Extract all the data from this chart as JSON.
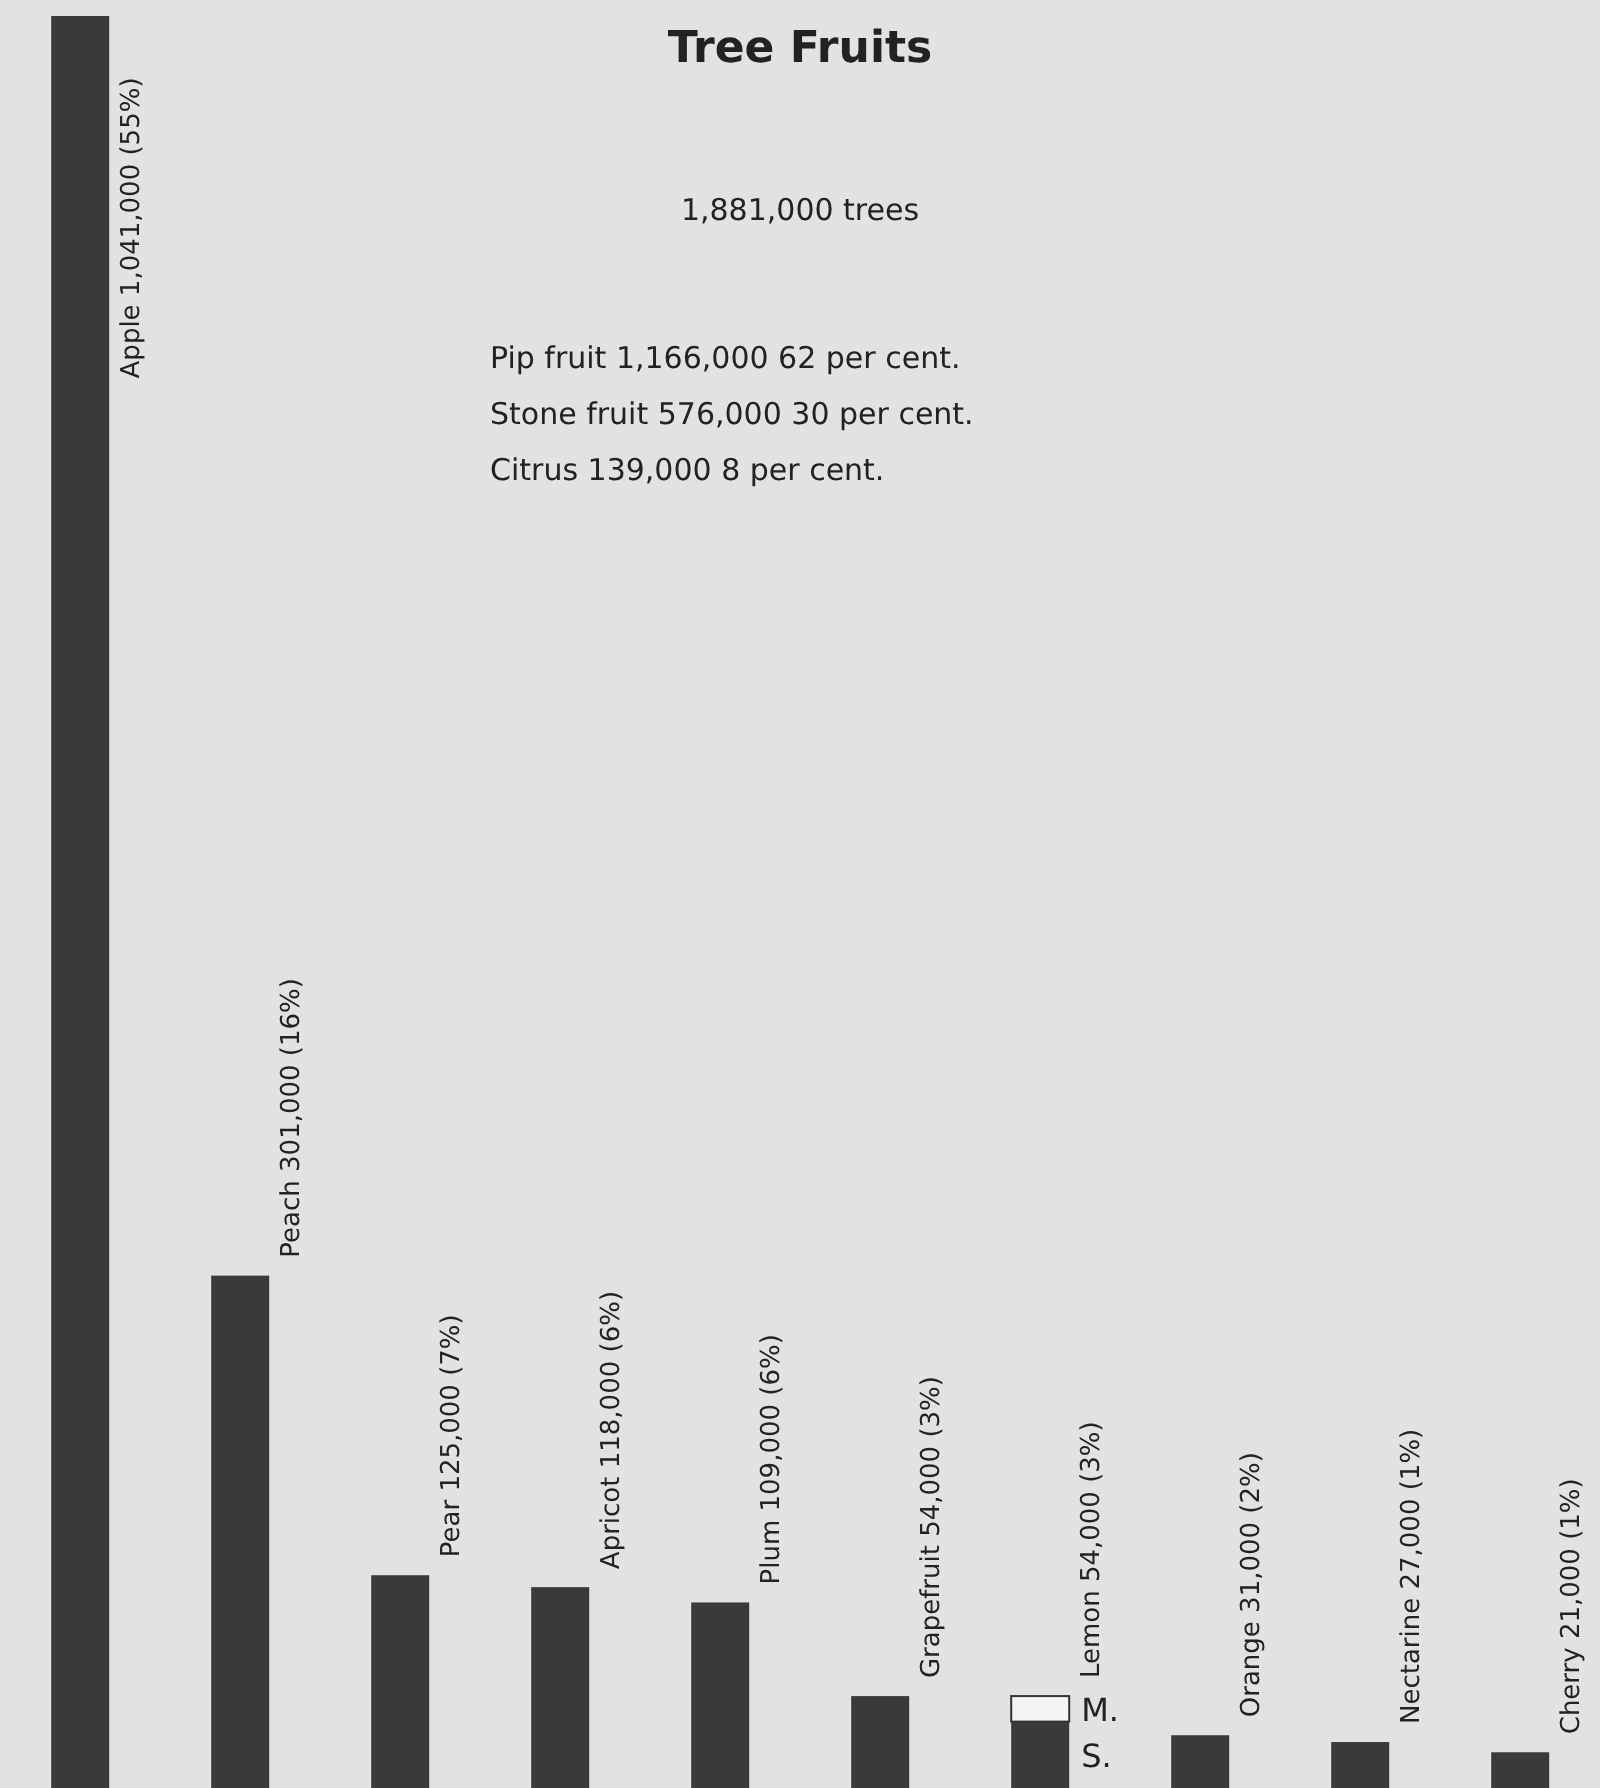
{
  "chart_data": {
    "type": "bar",
    "title": "Tree Fruits",
    "subtitle": "1,881,000 trees",
    "categories": [
      null,
      null,
      null,
      null,
      null,
      null,
      null,
      null,
      null,
      null
    ],
    "stacked": true,
    "series": [
      {
        "name": "S.",
        "color": "#3a3a3a",
        "values": [
          1041000,
          301000,
          125000,
          118000,
          109000,
          54000,
          39000,
          31000,
          27000,
          21000
        ],
        "value_labels": [
          "Apple 1,041,000 (55%)",
          "Peach 301,000 (16%)",
          "Pear 125,000 (7%)",
          "Apricot 118,000 (6%)",
          "Plum 109,000 (6%)",
          "Grapefruit 54,000 (3%)",
          null,
          "Orange 31,000 (2%)",
          "Nectarine 27,000 (1%)",
          "Cherry 21,000 (1%)"
        ]
      },
      {
        "name": "M.",
        "color": "#f4f4f4",
        "values": [
          null,
          null,
          null,
          null,
          null,
          null,
          15000,
          null,
          null,
          null
        ]
      }
    ],
    "totals": [
      null,
      null,
      null,
      null,
      null,
      null,
      "Lemon 54,000 (3%)",
      null,
      null,
      null
    ],
    "annotations": [
      "Pip fruit 1,166,000 62 per cent.",
      "Stone fruit 576,000 30 per cent.",
      "Citrus 139,000 8 per cent."
    ],
    "grid": false,
    "legend": false
  }
}
